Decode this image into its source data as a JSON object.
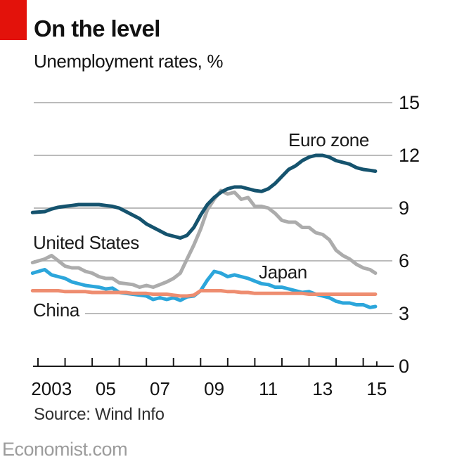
{
  "colors": {
    "brand_red": "#E3120B",
    "grid": "#BBBBBB",
    "axis": "#1A1A1A",
    "text": "#121212",
    "source_text": "#2F2F2F",
    "brand_gray": "#9C9C9C"
  },
  "chart_data": {
    "type": "line",
    "title": "On the level",
    "subtitle": "Unemployment rates, %",
    "source": "Source: Wind Info",
    "brand": "Economist.com",
    "grid": "horizontal",
    "legend_position": "inline-labels",
    "ylim": [
      0,
      15
    ],
    "yticks": [
      0,
      3,
      6,
      9,
      12,
      15
    ],
    "x_start": 2003,
    "x_end": 2015.5,
    "xticks": [
      2003,
      2004,
      2005,
      2006,
      2007,
      2008,
      2009,
      2010,
      2011,
      2012,
      2013,
      2014,
      2015
    ],
    "xtick_labels": [
      "2003",
      "05",
      "07",
      "09",
      "11",
      "13",
      "15"
    ],
    "xtick_label_years": [
      2003,
      2005,
      2007,
      2009,
      2011,
      2013,
      2015
    ],
    "x": [
      2002.8,
      2003.25,
      2003.5,
      2003.75,
      2004,
      2004.25,
      2004.5,
      2004.75,
      2005,
      2005.25,
      2005.5,
      2005.75,
      2006,
      2006.25,
      2006.5,
      2006.75,
      2007,
      2007.25,
      2007.5,
      2007.75,
      2008,
      2008.25,
      2008.5,
      2008.75,
      2009,
      2009.25,
      2009.5,
      2009.75,
      2010,
      2010.25,
      2010.5,
      2010.75,
      2011,
      2011.25,
      2011.5,
      2011.75,
      2012,
      2012.25,
      2012.5,
      2012.75,
      2013,
      2013.25,
      2013.5,
      2013.75,
      2014,
      2014.25,
      2014.5,
      2014.75,
      2015,
      2015.25,
      2015.45
    ],
    "series": [
      {
        "name": "Japan",
        "color": "#2CA6DB",
        "values": [
          5.3,
          5.5,
          5.2,
          5.1,
          5.0,
          4.8,
          4.7,
          4.6,
          4.55,
          4.5,
          4.4,
          4.45,
          4.2,
          4.15,
          4.1,
          4.05,
          4.0,
          3.8,
          3.9,
          3.8,
          3.9,
          3.75,
          3.95,
          4.0,
          4.3,
          4.9,
          5.4,
          5.3,
          5.1,
          5.2,
          5.1,
          5.0,
          4.85,
          4.7,
          4.65,
          4.5,
          4.5,
          4.4,
          4.3,
          4.2,
          4.25,
          4.1,
          4.0,
          3.9,
          3.7,
          3.6,
          3.6,
          3.5,
          3.5,
          3.35,
          3.4
        ]
      },
      {
        "name": "China",
        "color": "#EE8D70",
        "values": [
          4.3,
          4.3,
          4.3,
          4.3,
          4.25,
          4.25,
          4.25,
          4.25,
          4.2,
          4.2,
          4.2,
          4.2,
          4.2,
          4.2,
          4.15,
          4.15,
          4.15,
          4.1,
          4.1,
          4.1,
          4.05,
          4.0,
          4.0,
          4.05,
          4.3,
          4.3,
          4.3,
          4.3,
          4.25,
          4.25,
          4.2,
          4.2,
          4.15,
          4.15,
          4.15,
          4.15,
          4.15,
          4.15,
          4.15,
          4.15,
          4.1,
          4.1,
          4.1,
          4.1,
          4.1,
          4.1,
          4.1,
          4.1,
          4.1,
          4.1,
          4.1
        ]
      },
      {
        "name": "United States",
        "color": "#ACACAC",
        "values": [
          5.9,
          6.1,
          6.3,
          6.0,
          5.7,
          5.6,
          5.6,
          5.4,
          5.3,
          5.1,
          5.0,
          5.0,
          4.75,
          4.7,
          4.65,
          4.5,
          4.6,
          4.5,
          4.65,
          4.8,
          5.0,
          5.3,
          6.1,
          6.9,
          7.8,
          8.9,
          9.5,
          10.0,
          9.8,
          9.9,
          9.5,
          9.6,
          9.1,
          9.1,
          9.0,
          8.7,
          8.3,
          8.2,
          8.2,
          7.9,
          7.9,
          7.6,
          7.5,
          7.2,
          6.6,
          6.3,
          6.1,
          5.8,
          5.6,
          5.5,
          5.3
        ]
      },
      {
        "name": "Euro zone",
        "color": "#15536E",
        "values": [
          8.75,
          8.8,
          8.95,
          9.05,
          9.1,
          9.15,
          9.2,
          9.2,
          9.2,
          9.2,
          9.15,
          9.1,
          9.0,
          8.8,
          8.6,
          8.4,
          8.1,
          7.9,
          7.7,
          7.5,
          7.4,
          7.3,
          7.45,
          7.9,
          8.6,
          9.2,
          9.6,
          9.9,
          10.1,
          10.2,
          10.2,
          10.1,
          10.0,
          9.95,
          10.1,
          10.4,
          10.8,
          11.2,
          11.4,
          11.7,
          11.9,
          12.0,
          12.0,
          11.9,
          11.7,
          11.6,
          11.5,
          11.3,
          11.2,
          11.15,
          11.1
        ]
      }
    ]
  }
}
